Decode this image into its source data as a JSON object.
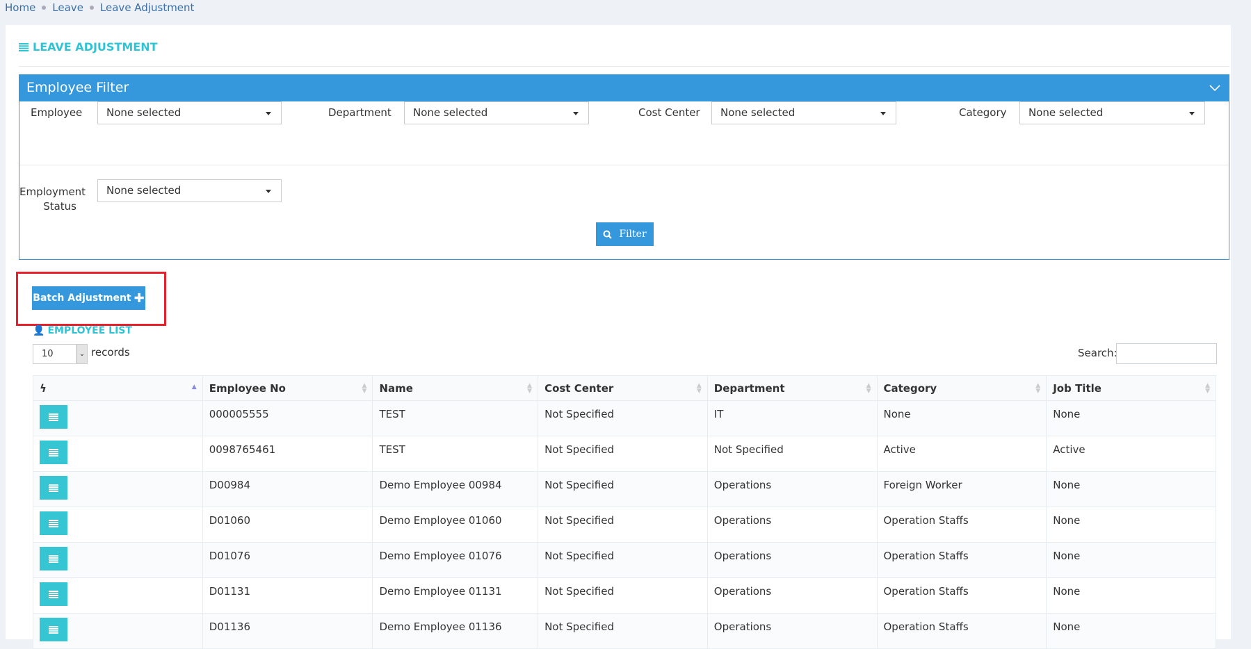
{
  "breadcrumb": [
    "Home",
    "Leave",
    "Leave Adjustment"
  ],
  "page_title": "LEAVE ADJUSTMENT",
  "filter": {
    "title": "Employee Filter",
    "fields": [
      {
        "label": "Employee",
        "value": "None selected"
      },
      {
        "label": "Department",
        "value": "None selected"
      },
      {
        "label": "Cost Center",
        "value": "None selected"
      },
      {
        "label": "Category",
        "value": "None selected"
      }
    ],
    "status": {
      "label1": "Employment",
      "label2": "Status",
      "value": "None selected"
    },
    "button": "Filter"
  },
  "batch_button": "Batch Adjustment",
  "list": {
    "title": "EMPLOYEE LIST",
    "length": "10",
    "records_label": "records",
    "search_label": "Search:",
    "search_value": ""
  },
  "table": {
    "columns": [
      "",
      "Employee No",
      "Name",
      "Cost Center",
      "Department",
      "Category",
      "Job Title"
    ],
    "rows": [
      [
        "000005555",
        "TEST",
        "Not Specified",
        "IT",
        "None",
        "None"
      ],
      [
        "0098765461",
        "TEST",
        "Not Specified",
        "Not Specified",
        "Active",
        "Active"
      ],
      [
        "D00984",
        "Demo Employee 00984",
        "Not Specified",
        "Operations",
        "Foreign Worker",
        "None"
      ],
      [
        "D01060",
        "Demo Employee 01060",
        "Not Specified",
        "Operations",
        "Operation Staffs",
        "None"
      ],
      [
        "D01076",
        "Demo Employee 01076",
        "Not Specified",
        "Operations",
        "Operation Staffs",
        "None"
      ],
      [
        "D01131",
        "Demo Employee 01131",
        "Not Specified",
        "Operations",
        "Operation Staffs",
        "None"
      ],
      [
        "D01136",
        "Demo Employee 01136",
        "Not Specified",
        "Operations",
        "Operation Staffs",
        "None"
      ]
    ]
  },
  "colors": {
    "primary": "#3598dc",
    "accent": "#36c6d3",
    "highlight": "#e8202a"
  }
}
